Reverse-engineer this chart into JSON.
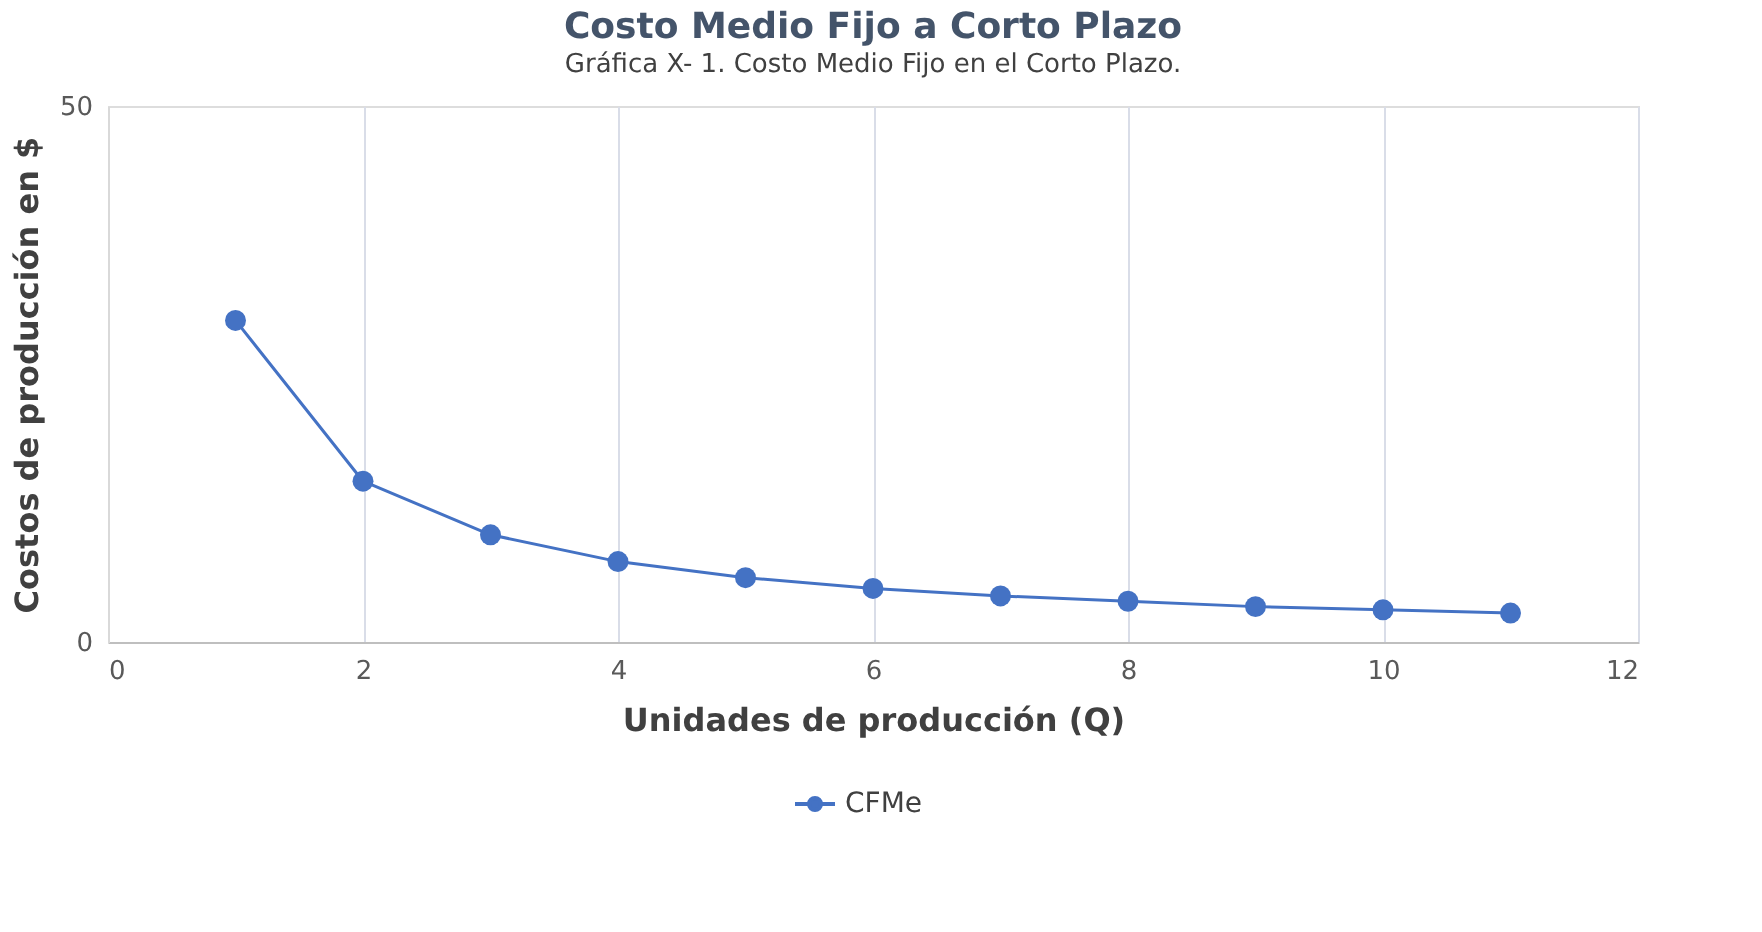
{
  "chart_data": {
    "type": "line",
    "title": "Costo Medio Fijo a Corto Plazo",
    "annotations": [
      "Gráfica X- 1. Costo Medio Fijo en el Corto Plazo."
    ],
    "xlabel": "Unidades de producción (Q)",
    "ylabel": "Costos de producción en $",
    "x": [
      1,
      2,
      3,
      4,
      5,
      6,
      7,
      8,
      9,
      10,
      11
    ],
    "series": [
      {
        "name": "CFMe",
        "color": "#4472c4",
        "values": [
          30,
          15,
          10,
          7.5,
          6,
          5,
          4.3,
          3.8,
          3.3,
          3,
          2.7
        ]
      }
    ],
    "xlim": [
      0,
      12
    ],
    "xticks": [
      0,
      2,
      4,
      6,
      8,
      10,
      12
    ],
    "ylim": [
      0,
      50
    ],
    "yticks": [
      0,
      50
    ],
    "grid": "x",
    "legend": "bottom",
    "marker": "circle",
    "line_style": "solid"
  }
}
